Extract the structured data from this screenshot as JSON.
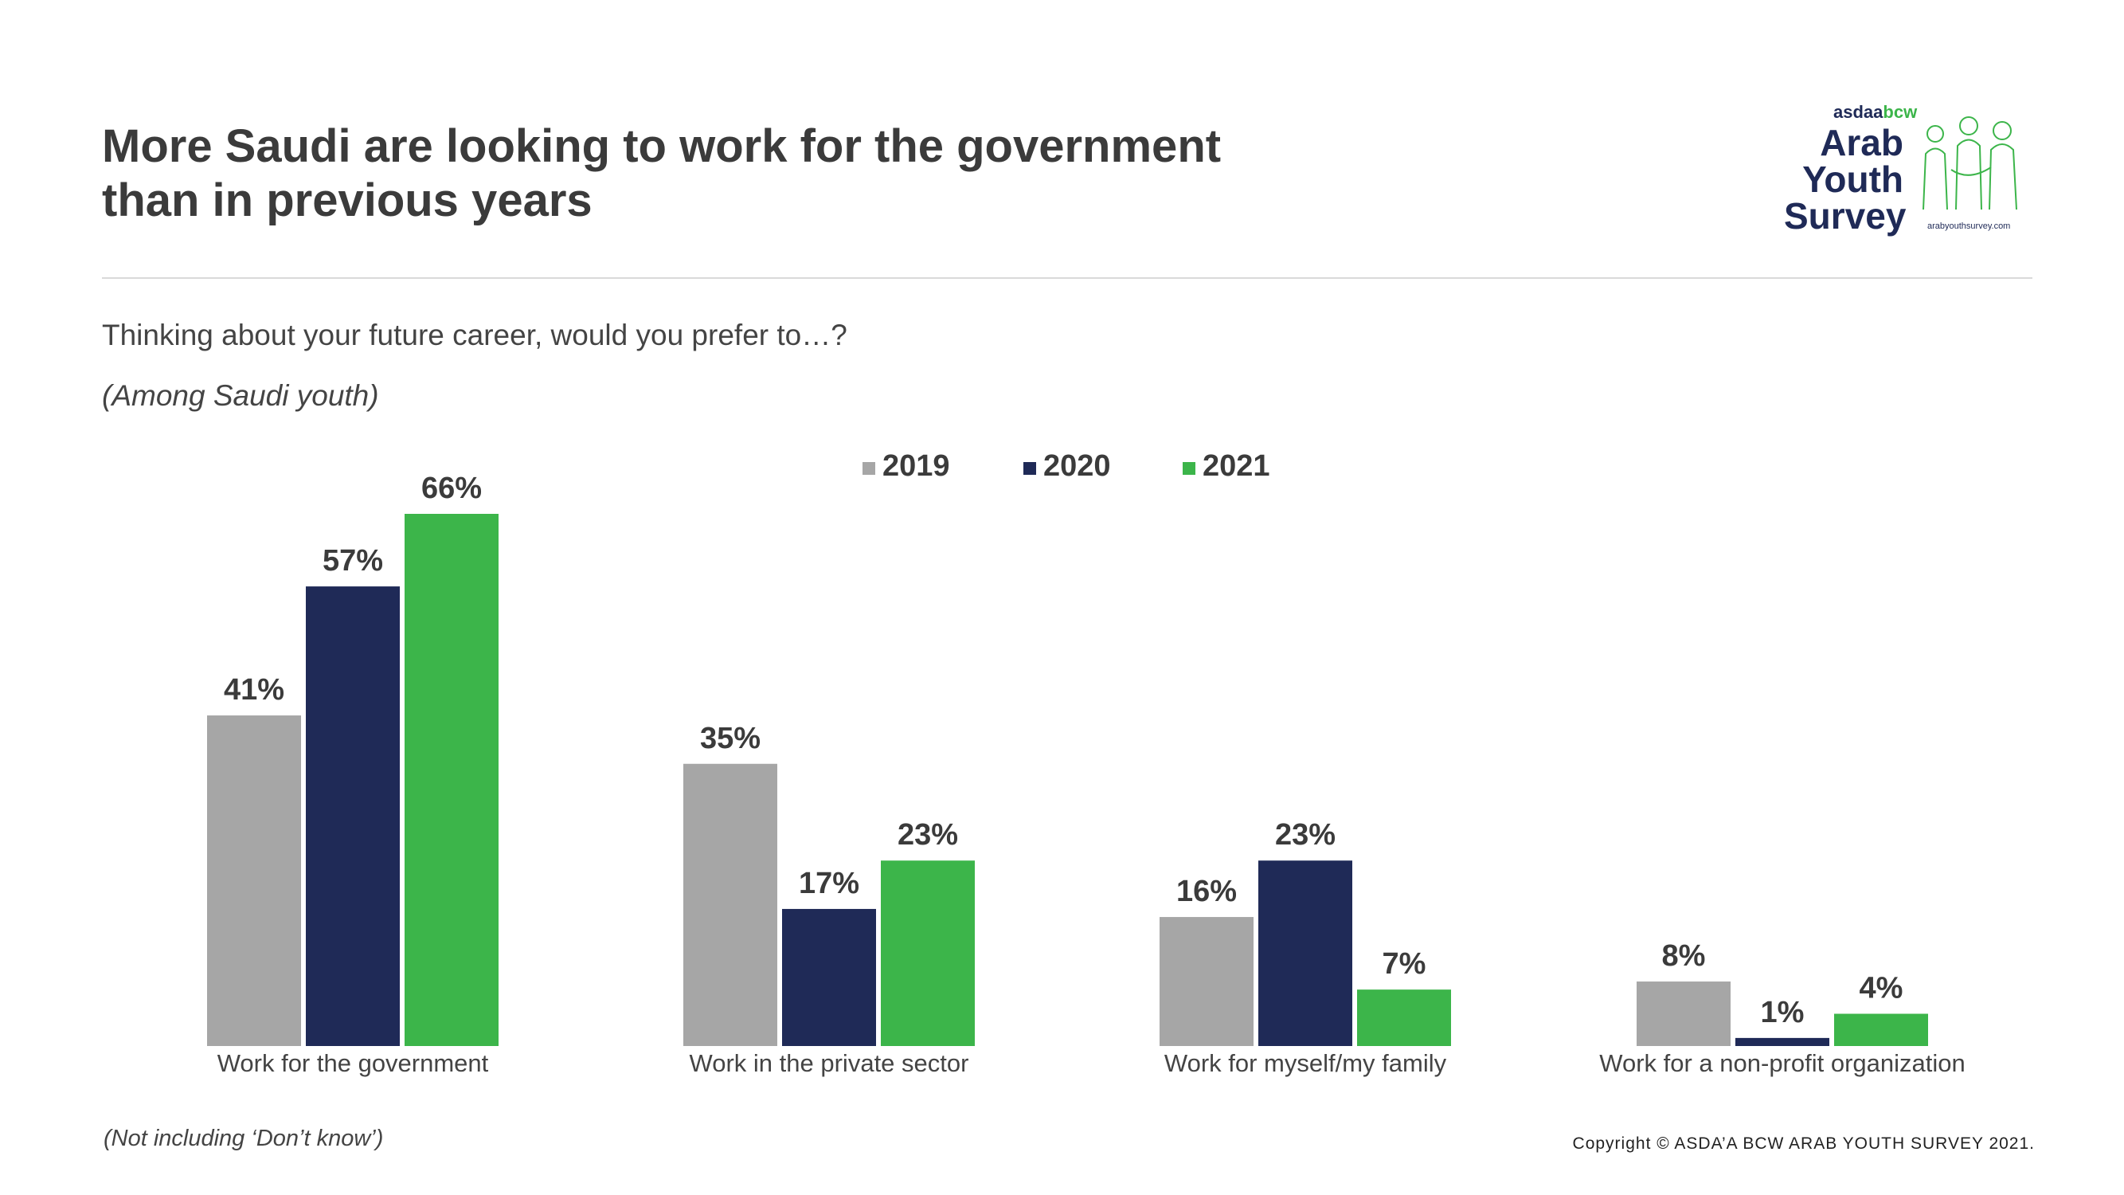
{
  "title": {
    "line1": "More Saudi are looking to work for the government",
    "line2": "than in previous years"
  },
  "question": "Thinking about your future career, would you prefer to…?",
  "subquestion": "(Among Saudi youth)",
  "footnote": "(Not including ‘Don’t know’)",
  "copyright": "Copyright © ASDA’A BCW ARAB YOUTH SURVEY 2021.",
  "logo": {
    "brand_a": "asdaa",
    "brand_b": "bcw",
    "word1": "Arab",
    "word2": "Youth",
    "word3": "Survey",
    "url": "arabyouthsurvey.com"
  },
  "colors": {
    "2019": "#a6a6a6",
    "2020": "#1f2a57",
    "2021": "#3cb54a",
    "label": "#3b3b3b"
  },
  "chart_data": {
    "type": "bar",
    "title": "",
    "xlabel": "",
    "ylabel": "",
    "ylim": [
      0,
      66
    ],
    "categories": [
      "Work for the government",
      "Work in the private sector",
      "Work for myself/my family",
      "Work for a non-profit organization"
    ],
    "series": [
      {
        "name": "2019",
        "values": [
          41,
          35,
          16,
          8
        ],
        "labels": [
          "41%",
          "35%",
          "16%",
          "8%"
        ]
      },
      {
        "name": "2020",
        "values": [
          57,
          17,
          23,
          1
        ],
        "labels": [
          "57%",
          "17%",
          "23%",
          "1%"
        ]
      },
      {
        "name": "2021",
        "values": [
          66,
          23,
          7,
          4
        ],
        "labels": [
          "66%",
          "23%",
          "7%",
          "4%"
        ]
      }
    ],
    "legend_position": "top"
  }
}
